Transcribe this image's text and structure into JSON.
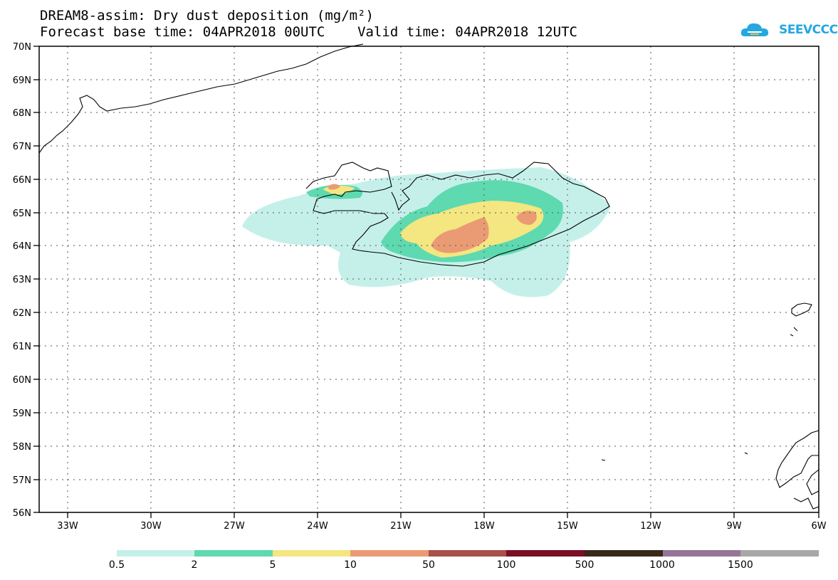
{
  "title": {
    "line1": "DREAM8-assim: Dry dust deposition (mg/m²)",
    "line2": "Forecast base time: 04APR2018 00UTC    Valid time: 04APR2018 12UTC"
  },
  "logo": {
    "text": "SEEVCCC",
    "icon": "cloud-icon",
    "color": "#25a7e0"
  },
  "map": {
    "lat_labels": [
      "70N",
      "69N",
      "68N",
      "67N",
      "66N",
      "65N",
      "64N",
      "63N",
      "62N",
      "61N",
      "60N",
      "59N",
      "58N",
      "57N",
      "56N"
    ],
    "lon_labels": [
      "33W",
      "30W",
      "27W",
      "24W",
      "21W",
      "18W",
      "15W",
      "12W",
      "9W",
      "6W"
    ],
    "lat_range": [
      56,
      70
    ],
    "lon_range": [
      -34,
      -6
    ]
  },
  "legend": {
    "colors": [
      "#c5f0ea",
      "#5ed9b0",
      "#f4e680",
      "#eb9b74",
      "#a8504a",
      "#7a0e25",
      "#382818",
      "#957597",
      "#a8a8a8"
    ],
    "labels": [
      "0.5",
      "2",
      "5",
      "10",
      "50",
      "100",
      "500",
      "1000",
      "1500"
    ]
  }
}
